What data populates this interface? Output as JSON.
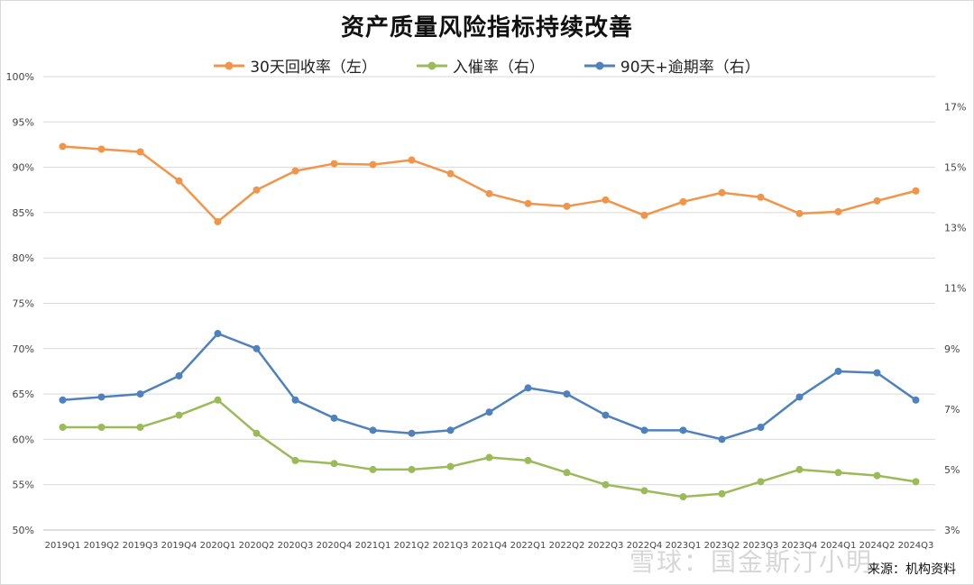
{
  "chart_data": {
    "type": "line",
    "title": "资产质量风险指标持续改善",
    "categories": [
      "2019Q1",
      "2019Q2",
      "2019Q3",
      "2019Q4",
      "2020Q1",
      "2020Q2",
      "2020Q3",
      "2020Q4",
      "2021Q1",
      "2021Q2",
      "2021Q3",
      "2021Q4",
      "2022Q1",
      "2022Q2",
      "2022Q3",
      "2022Q4",
      "2023Q1",
      "2023Q2",
      "2023Q3",
      "2023Q4",
      "2024Q1",
      "2024Q2",
      "2024Q3"
    ],
    "left_axis": {
      "min": 50,
      "max": 100,
      "step": 5,
      "ticks": [
        "50%",
        "55%",
        "60%",
        "65%",
        "70%",
        "75%",
        "80%",
        "85%",
        "90%",
        "95%",
        "100%"
      ]
    },
    "right_axis": {
      "min": 3,
      "max": 18,
      "step": 2,
      "ticks": [
        "3%",
        "5%",
        "7%",
        "9%",
        "11%",
        "13%",
        "15%",
        "17%"
      ]
    },
    "grid": true,
    "legend_position": "top-center",
    "series": [
      {
        "name": "30天回收率（左）",
        "axis": "left",
        "color": "#f0954a",
        "values": [
          92.3,
          92.0,
          91.7,
          88.5,
          84.0,
          87.5,
          89.6,
          90.4,
          90.3,
          90.8,
          89.3,
          87.1,
          86.0,
          85.7,
          86.4,
          84.7,
          86.2,
          87.2,
          86.7,
          84.9,
          85.1,
          86.3,
          87.4
        ]
      },
      {
        "name": "入催率（右）",
        "axis": "right",
        "color": "#9bbb59",
        "values": [
          6.4,
          6.4,
          6.4,
          6.8,
          7.3,
          6.2,
          5.3,
          5.2,
          5.0,
          5.0,
          5.1,
          5.4,
          5.3,
          4.9,
          4.5,
          4.3,
          4.1,
          4.2,
          4.6,
          5.0,
          4.9,
          4.8,
          4.6
        ]
      },
      {
        "name": "90天+逾期率（右）",
        "axis": "right",
        "color": "#4f81bd",
        "values": [
          7.3,
          7.4,
          7.5,
          8.1,
          9.5,
          9.0,
          7.3,
          6.7,
          6.3,
          6.2,
          6.3,
          6.9,
          7.7,
          7.5,
          6.8,
          6.3,
          6.3,
          6.0,
          6.4,
          7.4,
          8.25,
          8.2,
          7.3
        ]
      }
    ]
  },
  "source": "来源：机构资料",
  "watermark": "雪球：国金斯汀小明"
}
